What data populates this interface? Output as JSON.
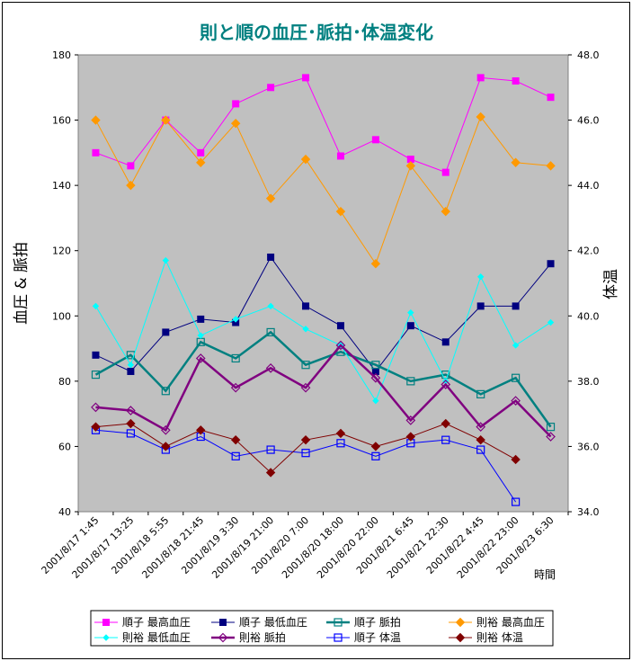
{
  "chart_data": {
    "type": "line",
    "title": "則と順の血圧･脈拍･体温変化",
    "ylabel_left": "血圧 & 脈拍",
    "ylabel_right": "体温",
    "xlabel": "時間",
    "ylim_left": [
      40,
      180
    ],
    "yticks_left": [
      "40",
      "60",
      "80",
      "100",
      "120",
      "140",
      "160",
      "180"
    ],
    "ylim_right": [
      34.0,
      48.0
    ],
    "yticks_right": [
      "34.0",
      "36.0",
      "38.0",
      "40.0",
      "42.0",
      "44.0",
      "46.0",
      "48.0"
    ],
    "x_tick_labels": [
      "2001/8/17 1:45",
      "2001/8/17 13:25",
      "2001/8/18 5:55",
      "2001/8/18 21:45",
      "2001/8/19 3:30",
      "2001/8/19 21:00",
      "2001/8/20 7:00",
      "2001/8/20 18:00",
      "2001/8/20 22:00",
      "2001/8/21 6:45",
      "2001/8/21 22:30",
      "2001/8/22 4:45",
      "2001/8/22 23:00",
      "2001/8/23 6:30"
    ],
    "grid": false,
    "legend_position": "bottom",
    "plot_background": "#c0c0c0",
    "series": [
      {
        "name": "順子 最高血圧",
        "axis": "left",
        "color": "#ff00ff",
        "marker": "square",
        "values": [
          150,
          146,
          160,
          150,
          165,
          170,
          173,
          149,
          154,
          148,
          144,
          173,
          172,
          167
        ]
      },
      {
        "name": "順子 最低血圧",
        "axis": "left",
        "color": "#000080",
        "marker": "square",
        "values": [
          88,
          83,
          95,
          99,
          98,
          118,
          103,
          97,
          83,
          97,
          92,
          103,
          103,
          116
        ]
      },
      {
        "name": "順子 脈拍",
        "axis": "left",
        "color": "#008080",
        "marker": "square-open",
        "thick": true,
        "values": [
          82,
          88,
          77,
          92,
          87,
          95,
          85,
          89,
          85,
          80,
          82,
          76,
          81,
          66
        ]
      },
      {
        "name": "則裕 最高血圧",
        "axis": "left",
        "color": "#ff9900",
        "marker": "diamond",
        "values": [
          160,
          140,
          160,
          147,
          159,
          136,
          148,
          132,
          116,
          146,
          132,
          161,
          147,
          146
        ]
      },
      {
        "name": "則裕 最低血圧",
        "axis": "left",
        "color": "#00ffff",
        "marker": "diamond-small",
        "values": [
          103,
          85,
          117,
          94,
          99,
          103,
          96,
          91,
          74,
          101,
          80,
          112,
          91,
          98
        ]
      },
      {
        "name": "則裕 脈拍",
        "axis": "left",
        "color": "#800080",
        "marker": "diamond-open",
        "thick": true,
        "values": [
          72,
          71,
          65,
          87,
          78,
          84,
          78,
          91,
          81,
          68,
          79,
          66,
          74,
          63
        ]
      },
      {
        "name": "順子 体温",
        "axis": "right",
        "color": "#0000ff",
        "marker": "square-open",
        "values": [
          36.5,
          36.4,
          35.9,
          36.3,
          35.7,
          35.9,
          35.8,
          36.1,
          35.7,
          36.1,
          36.2,
          35.9,
          34.3,
          null
        ]
      },
      {
        "name": "則裕 体温",
        "axis": "right",
        "color": "#800000",
        "marker": "diamond",
        "values": [
          36.6,
          36.7,
          36.0,
          36.5,
          36.2,
          35.2,
          36.2,
          36.4,
          36.0,
          36.3,
          36.7,
          36.2,
          35.6,
          null
        ]
      }
    ]
  }
}
